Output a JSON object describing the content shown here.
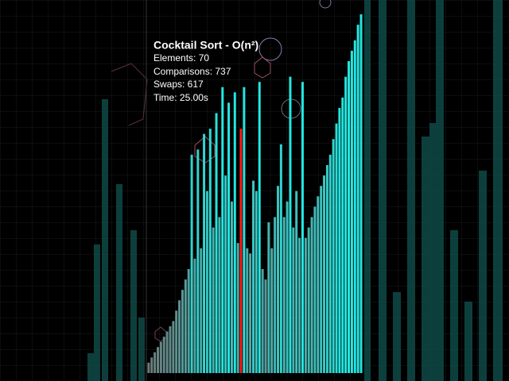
{
  "chart_data": {
    "type": "bar",
    "values": [
      2,
      3,
      4,
      5,
      6,
      7,
      8,
      9,
      10,
      12,
      14,
      16,
      18,
      20,
      42,
      22,
      43,
      24,
      46,
      35,
      47,
      28,
      50,
      30,
      55,
      38,
      52,
      33,
      54,
      25,
      47,
      55,
      24,
      23,
      37,
      35,
      56,
      20,
      18,
      29,
      24,
      30,
      36,
      44,
      30,
      33,
      57,
      28,
      35,
      26,
      56,
      26,
      28,
      30,
      32,
      34,
      36,
      38,
      40,
      42,
      45,
      48,
      51,
      53,
      57,
      60,
      62,
      64,
      67,
      69
    ],
    "color": "#22e8e2",
    "highlight": {
      "index": 30,
      "color": "#ff1a1a"
    }
  },
  "info": {
    "title": "Cocktail Sort - O(n²)",
    "lines": [
      "Elements: 70",
      "Comparisons: 737",
      "Swaps: 617",
      "Time: 25.00s"
    ]
  }
}
